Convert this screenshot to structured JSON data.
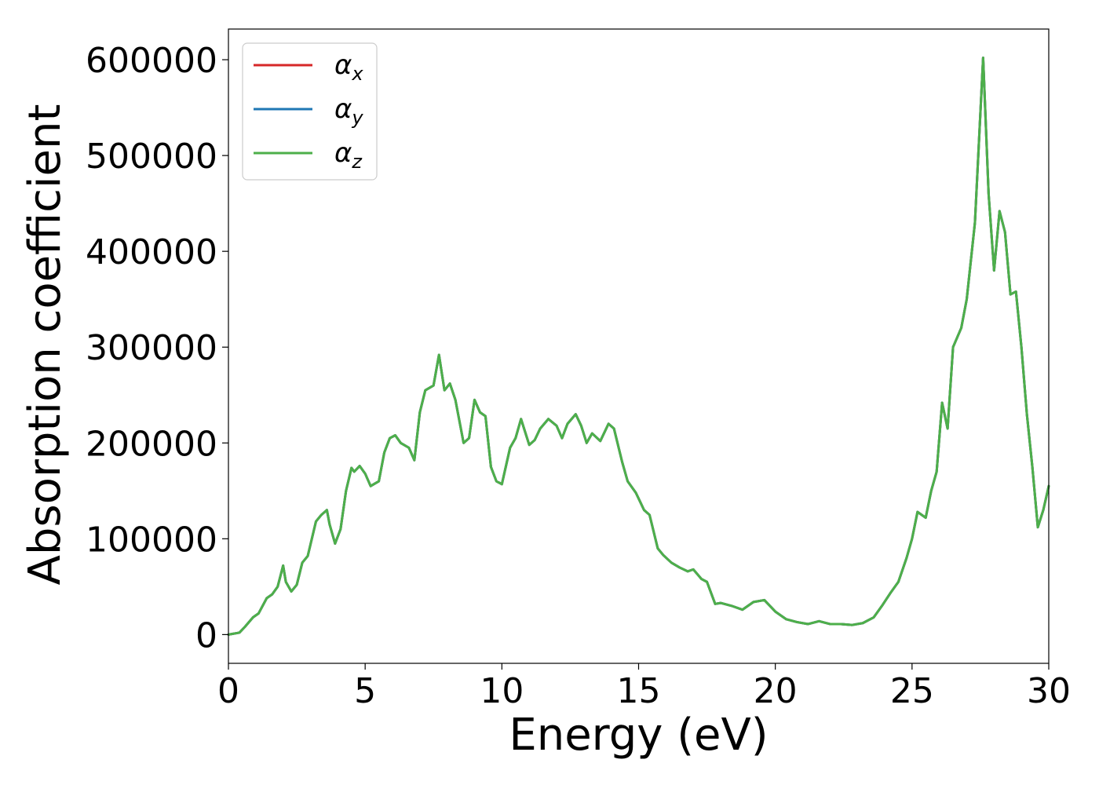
{
  "chart_data": {
    "type": "line",
    "xlabel": "Energy (eV)",
    "ylabel": "Absorption coefficient",
    "xlim": [
      0,
      30
    ],
    "ylim": [
      -30000,
      632000
    ],
    "xticks": [
      0,
      5,
      10,
      15,
      20,
      25,
      30
    ],
    "yticks": [
      0,
      100000,
      200000,
      300000,
      400000,
      500000,
      600000
    ],
    "grid": false,
    "legend_position": "top-left",
    "colors": {
      "alpha_x": "#d62728",
      "alpha_y": "#1f77b4",
      "alpha_z": "#4daf4a"
    },
    "series": [
      {
        "name": "α",
        "subscript": "x",
        "color": "#d62728",
        "key": "alpha_x"
      },
      {
        "name": "α",
        "subscript": "y",
        "color": "#1f77b4",
        "key": "alpha_y"
      },
      {
        "name": "α",
        "subscript": "z",
        "color": "#4daf4a",
        "key": "alpha_z"
      }
    ],
    "x": [
      0,
      0.4,
      0.6,
      0.9,
      1.1,
      1.4,
      1.6,
      1.8,
      2.0,
      2.1,
      2.3,
      2.5,
      2.7,
      2.9,
      3.2,
      3.4,
      3.6,
      3.7,
      3.9,
      4.1,
      4.3,
      4.5,
      4.6,
      4.8,
      5.0,
      5.2,
      5.5,
      5.7,
      5.9,
      6.1,
      6.3,
      6.6,
      6.8,
      7.0,
      7.2,
      7.5,
      7.7,
      7.9,
      8.1,
      8.3,
      8.6,
      8.8,
      9.0,
      9.2,
      9.4,
      9.6,
      9.8,
      10.0,
      10.3,
      10.5,
      10.7,
      11.0,
      11.2,
      11.4,
      11.7,
      12.0,
      12.2,
      12.4,
      12.7,
      12.9,
      13.1,
      13.3,
      13.6,
      13.9,
      14.1,
      14.4,
      14.6,
      14.9,
      15.2,
      15.4,
      15.7,
      15.9,
      16.2,
      16.5,
      16.8,
      17.0,
      17.3,
      17.5,
      17.8,
      18.0,
      18.4,
      18.8,
      19.2,
      19.6,
      20.0,
      20.4,
      20.8,
      21.2,
      21.6,
      22.0,
      22.4,
      22.8,
      23.2,
      23.6,
      23.9,
      24.2,
      24.5,
      24.8,
      25.0,
      25.2,
      25.5,
      25.7,
      25.9,
      26.1,
      26.3,
      26.5,
      26.8,
      27.0,
      27.3,
      27.6,
      27.8,
      28.0,
      28.2,
      28.4,
      28.6,
      28.8,
      29.0,
      29.2,
      29.4,
      29.6,
      29.8,
      30.0
    ],
    "y": [
      0,
      2000,
      8000,
      18000,
      22000,
      38000,
      42000,
      50000,
      72000,
      55000,
      45000,
      52000,
      75000,
      82000,
      118000,
      125000,
      130000,
      115000,
      95000,
      110000,
      150000,
      174000,
      170000,
      176000,
      168000,
      155000,
      160000,
      190000,
      205000,
      208000,
      200000,
      195000,
      182000,
      232000,
      255000,
      260000,
      292000,
      255000,
      262000,
      245000,
      200000,
      205000,
      245000,
      232000,
      228000,
      175000,
      160000,
      157000,
      195000,
      205000,
      225000,
      198000,
      203000,
      215000,
      225000,
      218000,
      205000,
      220000,
      230000,
      218000,
      200000,
      210000,
      202000,
      220000,
      215000,
      180000,
      160000,
      148000,
      130000,
      125000,
      90000,
      83000,
      75000,
      70000,
      66000,
      68000,
      58000,
      55000,
      32000,
      33000,
      30000,
      26000,
      34000,
      36000,
      24000,
      16000,
      13000,
      11000,
      14000,
      11000,
      11000,
      10000,
      12000,
      18000,
      30000,
      43000,
      55000,
      80000,
      100000,
      128000,
      122000,
      150000,
      170000,
      242000,
      215000,
      300000,
      320000,
      350000,
      430000,
      602000,
      460000,
      380000,
      442000,
      420000,
      355000,
      358000,
      300000,
      230000,
      175000,
      112000,
      130000,
      155000
    ]
  }
}
